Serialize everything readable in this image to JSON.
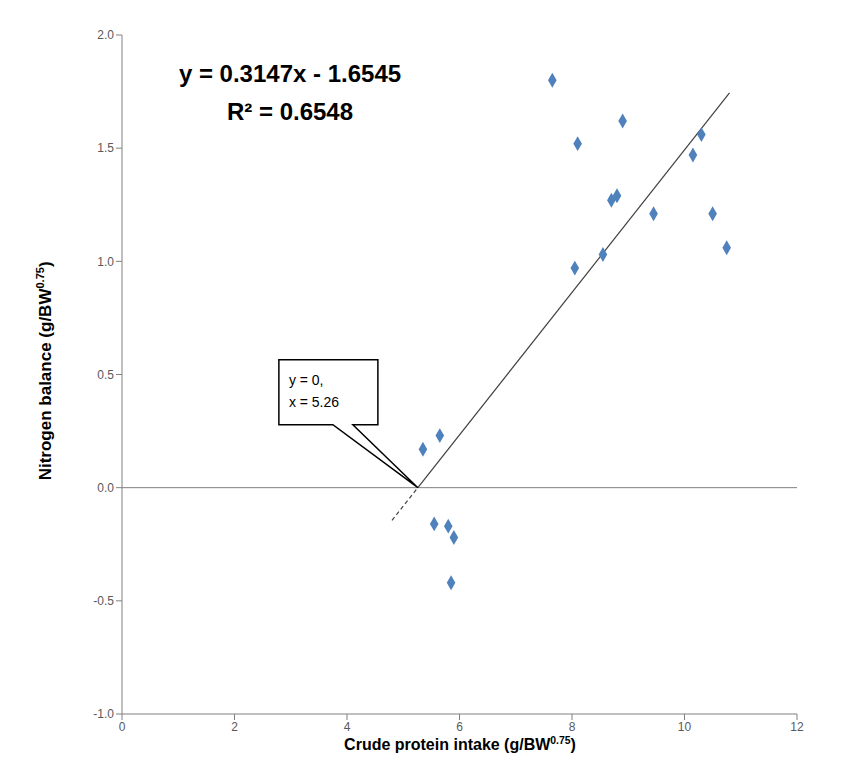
{
  "chart_data": {
    "type": "scatter",
    "xlabel": "Crude protein intake (g/BW0.75)",
    "ylabel": "Nitrogen balance (g/BW0.75)",
    "x": [
      5.35,
      5.65,
      5.55,
      5.8,
      5.9,
      5.85,
      7.65,
      8.1,
      8.05,
      8.55,
      8.7,
      8.8,
      8.9,
      9.45,
      10.15,
      10.3,
      10.5,
      10.75
    ],
    "values": [
      0.17,
      0.23,
      -0.16,
      -0.17,
      -0.22,
      -0.42,
      1.8,
      1.52,
      0.97,
      1.03,
      1.27,
      1.29,
      1.62,
      1.21,
      1.47,
      1.56,
      1.21,
      1.06
    ],
    "color": "#4f81bd",
    "marker": "diamond",
    "xlim": [
      0,
      12
    ],
    "xticks": [
      0,
      2,
      4,
      6,
      8,
      10,
      12
    ],
    "ylim": [
      -1,
      2
    ],
    "yticks": [
      {
        "value": -1,
        "label": "-1.0"
      },
      -0.5,
      {
        "value": 0,
        "label": "0.0"
      },
      0.5,
      {
        "value": 1,
        "label": "1.0"
      },
      1.5,
      {
        "value": 2,
        "label": "2.0"
      }
    ],
    "grid": false,
    "trend_lines": [
      {
        "x": [
          5.26,
          10.8
        ],
        "y": [
          0,
          1.744
        ],
        "line_style": "solid",
        "color": "#404040"
      },
      {
        "x": [
          4.8,
          5.26
        ],
        "y": [
          -0.144,
          0
        ],
        "line_style": "dashed",
        "color": "#404040"
      }
    ],
    "annotations": [
      {
        "text": "y = 0.3147x - 1.6545"
      },
      {
        "text": "R² = 0.6548"
      },
      {
        "text": [
          "y = 0,",
          "x = 5.26"
        ],
        "x": 5.26,
        "y": 0
      }
    ]
  }
}
